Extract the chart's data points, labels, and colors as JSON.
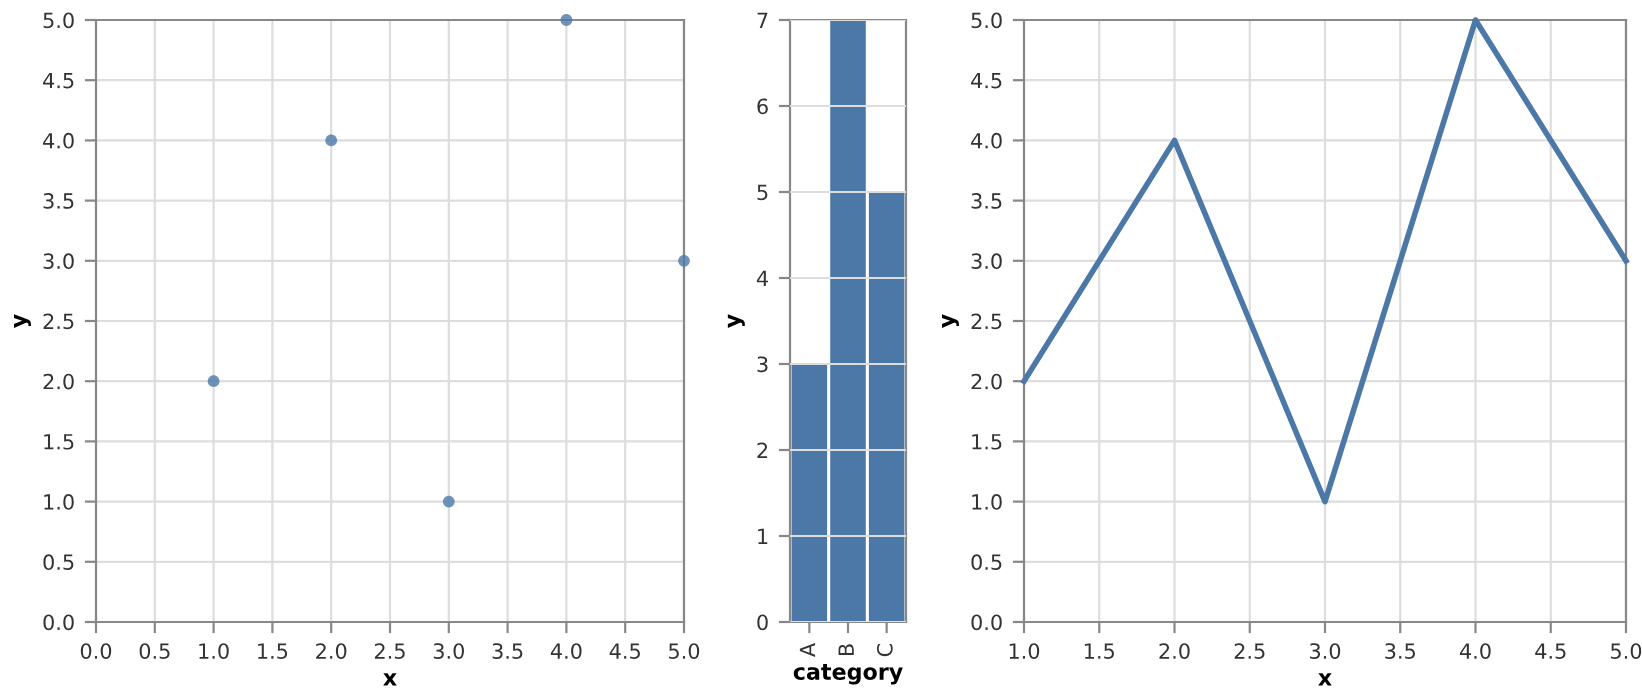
{
  "chart_data": [
    {
      "type": "scatter",
      "xlabel": "x",
      "ylabel": "y",
      "x": [
        1,
        2,
        3,
        4,
        5
      ],
      "values": [
        2,
        4,
        1,
        5,
        3
      ],
      "color": "#4c78a8",
      "marker": "circle",
      "grid": true,
      "xlim": [
        0,
        5
      ],
      "ylim": [
        0,
        5
      ],
      "xticks": [
        {
          "value": 0,
          "label": "0.0"
        },
        {
          "value": 0.5,
          "label": "0.5"
        },
        {
          "value": 1,
          "label": "1.0"
        },
        {
          "value": 1.5,
          "label": "1.5"
        },
        {
          "value": 2,
          "label": "2.0"
        },
        {
          "value": 2.5,
          "label": "2.5"
        },
        {
          "value": 3,
          "label": "3.0"
        },
        {
          "value": 3.5,
          "label": "3.5"
        },
        {
          "value": 4,
          "label": "4.0"
        },
        {
          "value": 4.5,
          "label": "4.5"
        },
        {
          "value": 5,
          "label": "5.0"
        }
      ],
      "yticks": [
        {
          "value": 0,
          "label": "0.0"
        },
        {
          "value": 0.5,
          "label": "0.5"
        },
        {
          "value": 1,
          "label": "1.0"
        },
        {
          "value": 1.5,
          "label": "1.5"
        },
        {
          "value": 2,
          "label": "2.0"
        },
        {
          "value": 2.5,
          "label": "2.5"
        },
        {
          "value": 3,
          "label": "3.0"
        },
        {
          "value": 3.5,
          "label": "3.5"
        },
        {
          "value": 4,
          "label": "4.0"
        },
        {
          "value": 4.5,
          "label": "4.5"
        },
        {
          "value": 5,
          "label": "5.0"
        }
      ]
    },
    {
      "type": "bar",
      "xlabel": "category",
      "ylabel": "y",
      "categories": [
        "A",
        "B",
        "C"
      ],
      "values": [
        3,
        7,
        5
      ],
      "color": "#4c78a8",
      "grid": "y",
      "ylim": [
        0,
        7
      ],
      "yticks": [
        0,
        1,
        2,
        3,
        4,
        5,
        6,
        7
      ]
    },
    {
      "type": "line",
      "xlabel": "x",
      "ylabel": "y",
      "x": [
        1,
        2,
        3,
        4,
        5
      ],
      "values": [
        2,
        4,
        1,
        5,
        3
      ],
      "color": "#4c78a8",
      "grid": true,
      "xlim": [
        1,
        5
      ],
      "ylim": [
        0,
        5
      ],
      "xticks": [
        {
          "value": 1,
          "label": "1.0"
        },
        {
          "value": 1.5,
          "label": "1.5"
        },
        {
          "value": 2,
          "label": "2.0"
        },
        {
          "value": 2.5,
          "label": "2.5"
        },
        {
          "value": 3,
          "label": "3.0"
        },
        {
          "value": 3.5,
          "label": "3.5"
        },
        {
          "value": 4,
          "label": "4.0"
        },
        {
          "value": 4.5,
          "label": "4.5"
        },
        {
          "value": 5,
          "label": "5.0"
        }
      ],
      "yticks": [
        {
          "value": 0,
          "label": "0.0"
        },
        {
          "value": 0.5,
          "label": "0.5"
        },
        {
          "value": 1,
          "label": "1.0"
        },
        {
          "value": 1.5,
          "label": "1.5"
        },
        {
          "value": 2,
          "label": "2.0"
        },
        {
          "value": 2.5,
          "label": "2.5"
        },
        {
          "value": 3,
          "label": "3.0"
        },
        {
          "value": 3.5,
          "label": "3.5"
        },
        {
          "value": 4,
          "label": "4.0"
        },
        {
          "value": 4.5,
          "label": "4.5"
        },
        {
          "value": 5,
          "label": "5.0"
        }
      ]
    }
  ]
}
